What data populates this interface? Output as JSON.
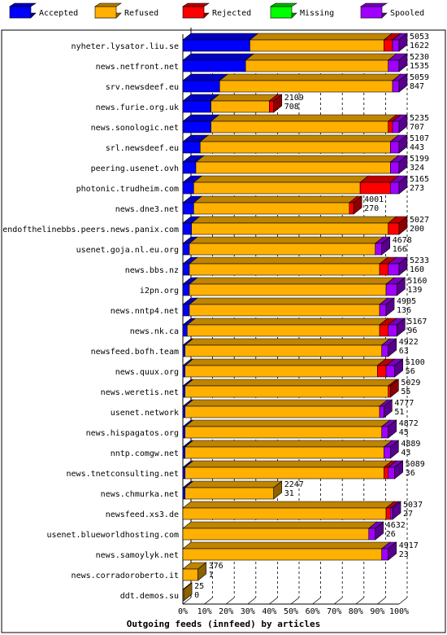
{
  "chart_data": {
    "type": "bar",
    "stacked": true,
    "orientation": "horizontal",
    "title": "Outgoing feeds (innfeed) by articles",
    "xlim": [
      0,
      100
    ],
    "x_ticks": [
      "0%",
      "10%",
      "20%",
      "30%",
      "40%",
      "50%",
      "60%",
      "70%",
      "80%",
      "90%",
      "100%"
    ],
    "grid": true,
    "legend_position": "top",
    "series": [
      {
        "name": "Accepted",
        "color": "#0000ff"
      },
      {
        "name": "Refused",
        "color": "#ffb000"
      },
      {
        "name": "Rejected",
        "color": "#ff0000"
      },
      {
        "name": "Missing",
        "color": "#00ff00"
      },
      {
        "name": "Spooled",
        "color": "#a000ff"
      }
    ],
    "rows": [
      {
        "name": "nyheter.lysator.liu.se",
        "total": "5053",
        "accepted_count": "1622",
        "pct": [
          31,
          62,
          4,
          0,
          3
        ]
      },
      {
        "name": "news.netfront.net",
        "total": "5230",
        "accepted_count": "1535",
        "pct": [
          29,
          66,
          0,
          0,
          5
        ]
      },
      {
        "name": "srv.newsdeef.eu",
        "total": "5059",
        "accepted_count": "847",
        "pct": [
          17,
          80,
          0,
          0,
          3
        ]
      },
      {
        "name": "news.furie.org.uk",
        "total": "2109",
        "accepted_count": "708",
        "pct": [
          13,
          27,
          2,
          0,
          0
        ]
      },
      {
        "name": "news.sonologic.net",
        "total": "5235",
        "accepted_count": "707",
        "pct": [
          13,
          82,
          2,
          0,
          3
        ]
      },
      {
        "name": "srl.newsdeef.eu",
        "total": "5107",
        "accepted_count": "443",
        "pct": [
          8,
          88,
          0,
          0,
          4
        ]
      },
      {
        "name": "peering.usenet.ovh",
        "total": "5199",
        "accepted_count": "324",
        "pct": [
          6,
          90,
          0,
          0,
          4
        ]
      },
      {
        "name": "photonic.trudheim.com",
        "total": "5165",
        "accepted_count": "273",
        "pct": [
          5,
          77,
          14,
          0,
          4
        ]
      },
      {
        "name": "news.dne3.net",
        "total": "4001",
        "accepted_count": "270",
        "pct": [
          5,
          72,
          2,
          0,
          0
        ]
      },
      {
        "name": "endofthelinebbs.peers.news.panix.com",
        "total": "5027",
        "accepted_count": "200",
        "pct": [
          4,
          91,
          5,
          0,
          0
        ]
      },
      {
        "name": "usenet.goja.nl.eu.org",
        "total": "4678",
        "accepted_count": "166",
        "pct": [
          3,
          86,
          0,
          0,
          3
        ]
      },
      {
        "name": "news.bbs.nz",
        "total": "5233",
        "accepted_count": "160",
        "pct": [
          3,
          88,
          4,
          0,
          5
        ]
      },
      {
        "name": "i2pn.org",
        "total": "5160",
        "accepted_count": "139",
        "pct": [
          3,
          91,
          0,
          0,
          5
        ]
      },
      {
        "name": "news.nntp4.net",
        "total": "4905",
        "accepted_count": "136",
        "pct": [
          3,
          88,
          0,
          0,
          3
        ]
      },
      {
        "name": "news.nk.ca",
        "total": "5167",
        "accepted_count": "96",
        "pct": [
          2,
          89,
          4,
          0,
          4
        ]
      },
      {
        "name": "newsfeed.bofh.team",
        "total": "4922",
        "accepted_count": "63",
        "pct": [
          1,
          91,
          0,
          0,
          3
        ]
      },
      {
        "name": "news.quux.org",
        "total": "5100",
        "accepted_count": "56",
        "pct": [
          1,
          89,
          4,
          0,
          4
        ]
      },
      {
        "name": "news.weretis.net",
        "total": "5029",
        "accepted_count": "55",
        "pct": [
          1,
          94,
          1,
          0,
          0
        ]
      },
      {
        "name": "usenet.network",
        "total": "4777",
        "accepted_count": "51",
        "pct": [
          1,
          90,
          0,
          0,
          2
        ]
      },
      {
        "name": "news.hispagatos.org",
        "total": "4872",
        "accepted_count": "45",
        "pct": [
          1,
          91,
          0,
          0,
          3
        ]
      },
      {
        "name": "nntp.comgw.net",
        "total": "4889",
        "accepted_count": "43",
        "pct": [
          1,
          92,
          0,
          0,
          3
        ]
      },
      {
        "name": "news.tnetconsulting.net",
        "total": "5089",
        "accepted_count": "36",
        "pct": [
          1,
          92,
          2,
          0,
          3
        ]
      },
      {
        "name": "news.chmurka.net",
        "total": "2247",
        "accepted_count": "31",
        "pct": [
          1,
          41,
          0,
          0,
          0
        ]
      },
      {
        "name": "newsfeed.xs3.de",
        "total": "5037",
        "accepted_count": "27",
        "pct": [
          0,
          94,
          2,
          0,
          1
        ]
      },
      {
        "name": "usenet.blueworldhosting.com",
        "total": "4632",
        "accepted_count": "26",
        "pct": [
          0,
          86,
          0,
          0,
          3
        ]
      },
      {
        "name": "news.samoylyk.net",
        "total": "4917",
        "accepted_count": "23",
        "pct": [
          0,
          92,
          0,
          0,
          3
        ]
      },
      {
        "name": "news.corradoroberto.it",
        "total": "376",
        "accepted_count": "1",
        "pct": [
          0,
          7,
          0,
          0,
          0
        ]
      },
      {
        "name": "ddt.demos.su",
        "total": "25",
        "accepted_count": "0",
        "pct": [
          0,
          0.4,
          0,
          0,
          0
        ]
      }
    ]
  }
}
